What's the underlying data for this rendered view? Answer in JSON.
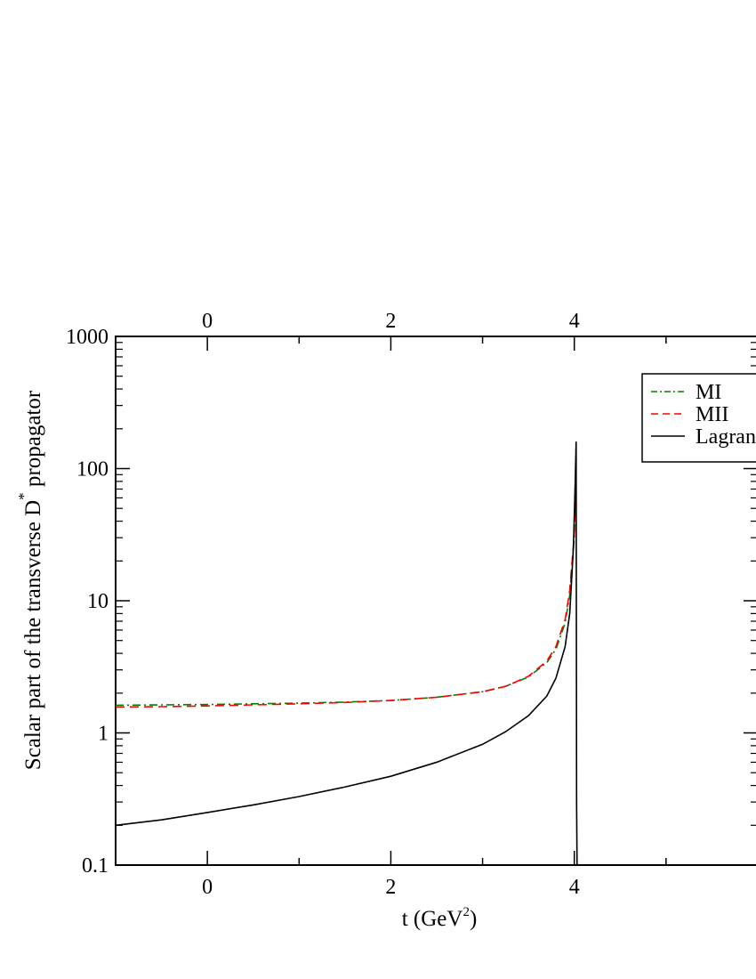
{
  "chart_data": {
    "type": "line",
    "xlabel": {
      "text": "t (GeV",
      "sup": "2",
      "close": ")"
    },
    "ylabel": {
      "text": "Scalar part of the transverse D",
      "sup": "*",
      "tail": " propagator"
    },
    "xlim": [
      -1,
      6
    ],
    "ylim": [
      0.1,
      1000
    ],
    "yscale": "log",
    "x_ticks_bottom": [
      "0",
      "2",
      "4"
    ],
    "x_ticks_top": [
      "0",
      "2",
      "4"
    ],
    "y_ticks": [
      "0.1",
      "1",
      "10",
      "100",
      "1000"
    ],
    "grid": false,
    "legend_position": "top-right",
    "series": [
      {
        "name": "MI",
        "color": "#008000",
        "dash": "dash-dot",
        "x": [
          -1,
          -0.5,
          0,
          0.5,
          1,
          1.5,
          2,
          2.5,
          3,
          3.25,
          3.5,
          3.7,
          3.8,
          3.9,
          3.95,
          4.0,
          4.02
        ],
        "y": [
          1.62,
          1.63,
          1.64,
          1.66,
          1.68,
          1.71,
          1.76,
          1.86,
          2.05,
          2.25,
          2.65,
          3.4,
          4.3,
          6.8,
          11,
          30,
          120
        ]
      },
      {
        "name": "MII",
        "color": "#ff0000",
        "dash": "dashed",
        "x": [
          -1,
          -0.5,
          0,
          0.5,
          1,
          1.5,
          2,
          2.5,
          3,
          3.25,
          3.5,
          3.7,
          3.8,
          3.9,
          3.95,
          4.0,
          4.02
        ],
        "y": [
          1.57,
          1.58,
          1.6,
          1.63,
          1.66,
          1.7,
          1.76,
          1.86,
          2.05,
          2.25,
          2.68,
          3.5,
          4.5,
          7.2,
          12,
          32,
          120
        ]
      },
      {
        "name": "Lagrangian",
        "color": "#000000",
        "dash": "solid",
        "x": [
          -1,
          -0.5,
          0,
          0.5,
          1,
          1.5,
          2,
          2.5,
          3,
          3.25,
          3.5,
          3.7,
          3.8,
          3.9,
          3.95,
          3.99,
          4.01,
          4.02,
          4.025,
          4.03
        ],
        "y": [
          0.2,
          0.22,
          0.25,
          0.285,
          0.33,
          0.39,
          0.47,
          0.6,
          0.82,
          1.02,
          1.35,
          1.9,
          2.6,
          4.5,
          8,
          25,
          80,
          160,
          0.3,
          0.1
        ]
      }
    ]
  }
}
